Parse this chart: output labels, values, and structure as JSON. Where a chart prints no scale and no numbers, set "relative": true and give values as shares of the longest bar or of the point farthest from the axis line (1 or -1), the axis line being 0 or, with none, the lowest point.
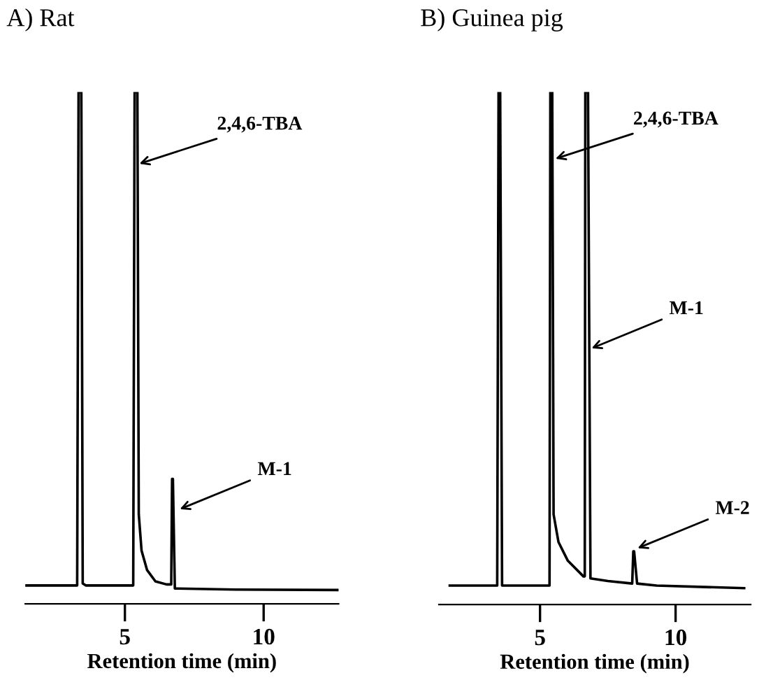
{
  "chart_data": [
    {
      "type": "line",
      "title": "A) Rat",
      "xlabel": "Retention time (min)",
      "relative": true,
      "xlim": [
        1.41,
        12.7
      ],
      "xticks": [
        5,
        10
      ],
      "tick_labels": "x",
      "series": [
        {
          "color": "#000000",
          "x": [
            1.41,
            3.28,
            3.33,
            3.43,
            3.48,
            3.59,
            5.3,
            5.35,
            5.45,
            5.5,
            5.6,
            5.8,
            6.1,
            6.5,
            6.67,
            6.7,
            6.73,
            6.8,
            6.9,
            9.0,
            12.7
          ],
          "values": [
            0.036,
            0.036,
            1,
            1,
            0.04,
            0.036,
            0.036,
            1,
            1,
            0.175,
            0.104,
            0.066,
            0.044,
            0.038,
            0.038,
            0.244,
            0.244,
            0.03,
            0.03,
            0.028,
            0.027
          ]
        }
      ],
      "annotations": [
        {
          "text": "2,4,6-TBA",
          "x": 5.52,
          "y": 0.86
        },
        {
          "text": "M-1",
          "x": 6.98,
          "y": 0.185
        }
      ]
    },
    {
      "type": "line",
      "title": "B) Guinea pig",
      "xlabel": "Retention time (min)",
      "relative": true,
      "xlim": [
        1.27,
        12.77
      ],
      "xticks": [
        5,
        10
      ],
      "tick_labels": "x",
      "series": [
        {
          "color": "#000000",
          "x": [
            1.67,
            3.42,
            3.47,
            3.53,
            3.6,
            5.35,
            5.38,
            5.45,
            5.5,
            5.68,
            6.02,
            6.6,
            6.65,
            6.67,
            6.77,
            6.86,
            7.5,
            8.4,
            8.44,
            8.47,
            8.58,
            9.3,
            12.53
          ],
          "values": [
            0.037,
            0.037,
            1,
            1,
            0.037,
            0.037,
            1,
            1,
            0.176,
            0.122,
            0.086,
            0.055,
            0.055,
            1,
            1,
            0.051,
            0.046,
            0.041,
            0.104,
            0.104,
            0.041,
            0.037,
            0.032
          ]
        }
      ],
      "annotations": [
        {
          "text": "2,4,6-TBA",
          "x": 5.57,
          "y": 0.87
        },
        {
          "text": "M-1",
          "x": 6.9,
          "y": 0.5
        },
        {
          "text": "M-2",
          "x": 8.6,
          "y": 0.11
        }
      ]
    }
  ]
}
